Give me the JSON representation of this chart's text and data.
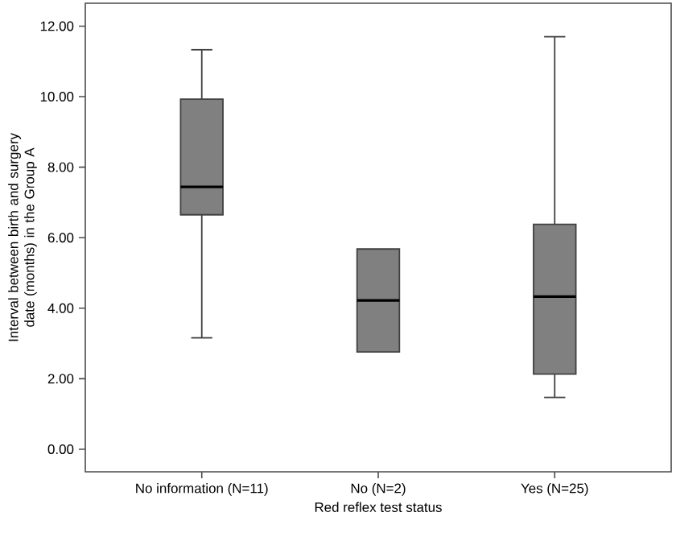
{
  "chart_data": {
    "type": "box",
    "xlabel": "Red reflex test status",
    "ylabel": "Interval between birth and surgery date (months) in the Group A",
    "categories": [
      "No information (N=11)",
      "No (N=2)",
      "Yes (N=25)"
    ],
    "color": "#808080",
    "boxes": [
      {
        "low": 3.16,
        "q1": 6.65,
        "median": 7.44,
        "q3": 9.93,
        "high": 11.33
      },
      {
        "low": 2.76,
        "q1": 2.76,
        "median": 4.22,
        "q3": 5.68,
        "high": 5.68
      },
      {
        "low": 1.47,
        "q1": 2.13,
        "median": 4.33,
        "q3": 6.38,
        "high": 11.7
      }
    ],
    "ylim": [
      -0.64,
      12.65
    ],
    "yticks": [
      {
        "value": 0,
        "label": "0.00"
      },
      {
        "value": 2,
        "label": "2.00"
      },
      {
        "value": 4,
        "label": "4.00"
      },
      {
        "value": 6,
        "label": "6.00"
      },
      {
        "value": 8,
        "label": "8.00"
      },
      {
        "value": 10,
        "label": "10.00"
      },
      {
        "value": 12,
        "label": "12.00"
      }
    ],
    "grid": false
  }
}
